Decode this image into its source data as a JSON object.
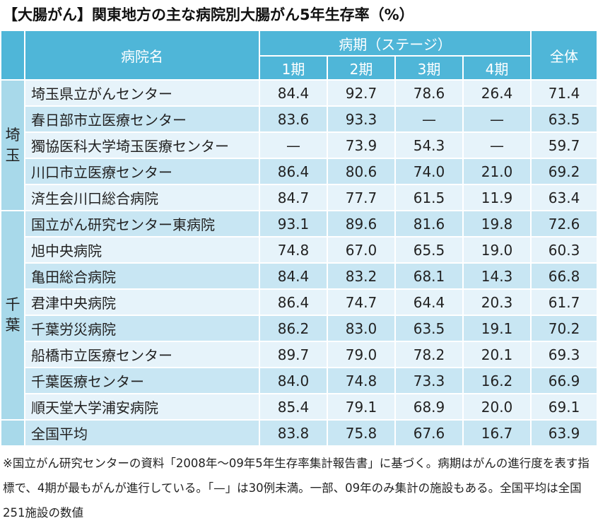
{
  "title": "【大腸がん】関東地方の主な病院別大腸がん5年生存率（%）",
  "header": {
    "hospital": "病院名",
    "stage_group": "病期（ステージ）",
    "stages": [
      "1期",
      "2期",
      "3期",
      "4期"
    ],
    "overall": "全体"
  },
  "regions": [
    {
      "label": "埼\n玉",
      "rows": [
        {
          "name": "埼玉県立がんセンター",
          "s1": "84.4",
          "s2": "92.7",
          "s3": "78.6",
          "s4": "26.4",
          "all": "71.4"
        },
        {
          "name": "春日部市立医療センター",
          "s1": "83.6",
          "s2": "93.3",
          "s3": "—",
          "s4": "—",
          "all": "63.5"
        },
        {
          "name": "獨協医科大学埼玉医療センター",
          "s1": "—",
          "s2": "73.9",
          "s3": "54.3",
          "s4": "—",
          "all": "59.7"
        },
        {
          "name": "川口市立医療センター",
          "s1": "86.4",
          "s2": "80.6",
          "s3": "74.0",
          "s4": "21.0",
          "all": "69.2"
        },
        {
          "name": "済生会川口総合病院",
          "s1": "84.7",
          "s2": "77.7",
          "s3": "61.5",
          "s4": "11.9",
          "all": "63.4"
        }
      ]
    },
    {
      "label": "千\n葉",
      "rows": [
        {
          "name": "国立がん研究センター東病院",
          "s1": "93.1",
          "s2": "89.6",
          "s3": "81.6",
          "s4": "19.8",
          "all": "72.6"
        },
        {
          "name": "旭中央病院",
          "s1": "74.8",
          "s2": "67.0",
          "s3": "65.5",
          "s4": "19.0",
          "all": "60.3"
        },
        {
          "name": "亀田総合病院",
          "s1": "84.4",
          "s2": "83.2",
          "s3": "68.1",
          "s4": "14.3",
          "all": "66.8"
        },
        {
          "name": "君津中央病院",
          "s1": "86.4",
          "s2": "74.7",
          "s3": "64.4",
          "s4": "20.3",
          "all": "61.7"
        },
        {
          "name": "千葉労災病院",
          "s1": "86.2",
          "s2": "83.0",
          "s3": "63.5",
          "s4": "19.1",
          "all": "70.2"
        },
        {
          "name": "船橋市立医療センター",
          "s1": "89.7",
          "s2": "79.0",
          "s3": "78.2",
          "s4": "20.1",
          "all": "69.3"
        },
        {
          "name": "千葉医療センター",
          "s1": "84.0",
          "s2": "74.8",
          "s3": "73.3",
          "s4": "16.2",
          "all": "66.9"
        },
        {
          "name": "順天堂大学浦安病院",
          "s1": "85.4",
          "s2": "79.1",
          "s3": "68.9",
          "s4": "20.0",
          "all": "69.1"
        }
      ]
    },
    {
      "label": "",
      "rows": [
        {
          "name": "全国平均",
          "s1": "83.8",
          "s2": "75.8",
          "s3": "67.6",
          "s4": "16.7",
          "all": "63.9"
        }
      ]
    }
  ],
  "footnote": "※国立がん研究センターの資料「2008年～09年5年生存率集計報告書」に基づく。病期はがんの進行度を表す指標で、4期が最もがんが進行している。「—」は30例未満。一部、09年のみ集計の施設もある。全国平均は全国251施設の数値"
}
